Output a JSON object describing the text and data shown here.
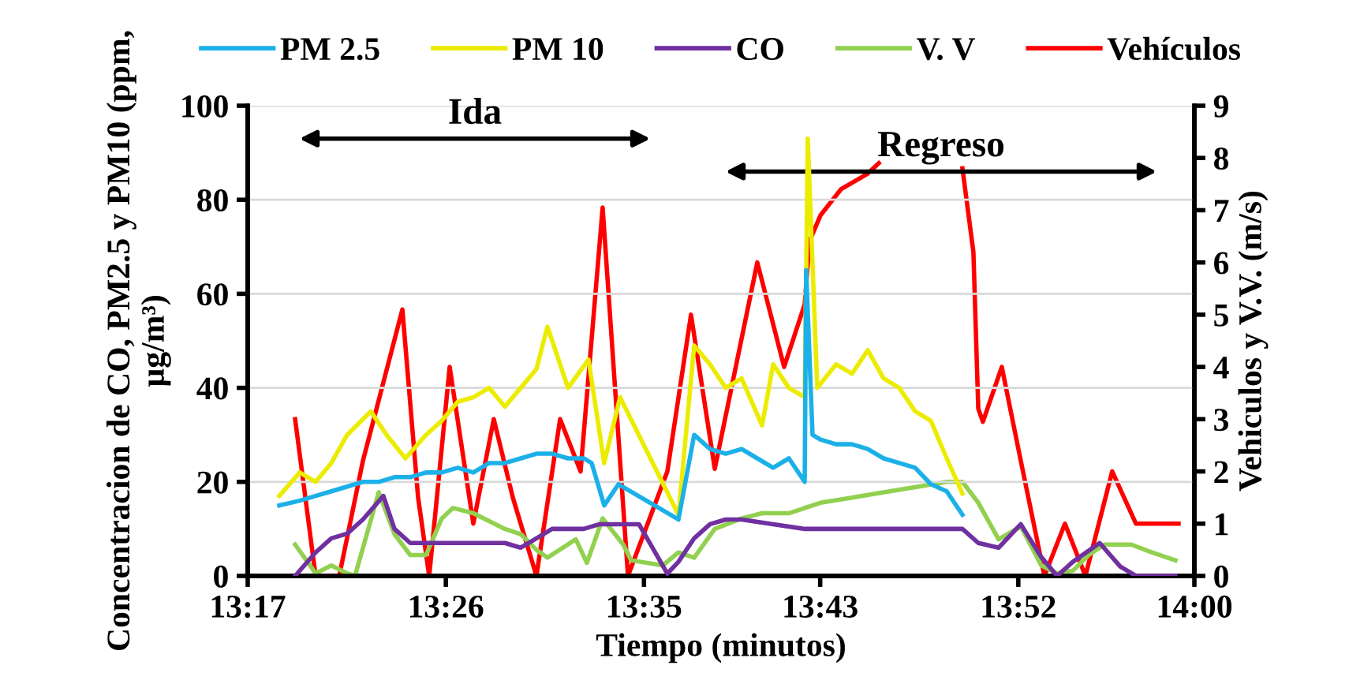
{
  "chart_data": {
    "type": "line",
    "xlabel": "Tiempo (minutos)",
    "ylabel": "Concentracion de CO, PM2.5 y PM10 (ppm, µg/m³)",
    "y2label": "Vehiculos y V.V. (m/s)",
    "annotations": [
      "Ida",
      "Regreso"
    ],
    "xlim": [
      13.2833,
      14.0
    ],
    "xticks": [
      {
        "value": 13.2833,
        "label": "13:17"
      },
      {
        "value": 13.4333,
        "label": "13:26"
      },
      {
        "value": 13.5833,
        "label": "13:35"
      },
      {
        "value": 13.7167,
        "label": "13:43"
      },
      {
        "value": 13.8667,
        "label": "13:52"
      },
      {
        "value": 14.0,
        "label": "14:00"
      }
    ],
    "ylim": [
      0,
      100
    ],
    "yticks": [
      0,
      20,
      40,
      60,
      80,
      100
    ],
    "y2lim": [
      0,
      9
    ],
    "y2ticks": [
      0,
      1,
      2,
      3,
      4,
      5,
      6,
      7,
      8,
      9
    ],
    "grid": "y",
    "legend": "top",
    "marker": "none",
    "line_style": "solid",
    "series": [
      {
        "name": "PM 2.5",
        "color": "#1cb0e8",
        "x": [
          13.3072,
          13.3227,
          13.3347,
          13.3466,
          13.3586,
          13.3705,
          13.3825,
          13.3944,
          13.4063,
          13.4183,
          13.4302,
          13.4422,
          13.4541,
          13.4661,
          13.478,
          13.49,
          13.5019,
          13.5138,
          13.5258,
          13.5377,
          13.5437,
          13.5532,
          13.564,
          13.6094,
          13.6213,
          13.6333,
          13.6452,
          13.6572,
          13.6691,
          13.6811,
          13.693,
          13.705,
          13.7061,
          13.7109,
          13.7169,
          13.7288,
          13.7408,
          13.7527,
          13.7647,
          13.7766,
          13.7886,
          13.8005,
          13.8125,
          13.8244
        ],
        "values": [
          15,
          16,
          17,
          18,
          19,
          20,
          20,
          21,
          21,
          22,
          22,
          23,
          22,
          24,
          24,
          25,
          26,
          26,
          25,
          25,
          24,
          15,
          19.5,
          12,
          30,
          27,
          26,
          27,
          25,
          23,
          25,
          20,
          65,
          30,
          29,
          28,
          28,
          27,
          25,
          24,
          23,
          19.5,
          18,
          13
        ]
      },
      {
        "name": "PM 10",
        "color": "#ecec00",
        "x": [
          13.3072,
          13.3227,
          13.3347,
          13.3466,
          13.3586,
          13.3765,
          13.3884,
          13.4027,
          13.4183,
          13.4302,
          13.4422,
          13.4541,
          13.4661,
          13.478,
          13.49,
          13.5019,
          13.5102,
          13.5258,
          13.5413,
          13.5532,
          13.5652,
          13.6094,
          13.6213,
          13.6333,
          13.6452,
          13.6572,
          13.6727,
          13.6811,
          13.693,
          13.705,
          13.7073,
          13.7145,
          13.7288,
          13.7408,
          13.7527,
          13.7647,
          13.7766,
          13.7886,
          13.8005,
          13.8125,
          13.8244
        ],
        "values": [
          17,
          22,
          20,
          24,
          30,
          35,
          30,
          25,
          30,
          33,
          37,
          38,
          40,
          36,
          40,
          44,
          53,
          40,
          46,
          24,
          38,
          13,
          49,
          45,
          40,
          42,
          32,
          45,
          40,
          38,
          93,
          40,
          45,
          43,
          48,
          42,
          40,
          35,
          33,
          25,
          17.5
        ]
      },
      {
        "name": "CO",
        "color": "#7030a0",
        "x": [
          13.3192,
          13.3347,
          13.3466,
          13.3586,
          13.3705,
          13.386,
          13.3944,
          13.4063,
          13.4302,
          13.4541,
          13.478,
          13.49,
          13.5019,
          13.5138,
          13.5377,
          13.5497,
          13.5795,
          13.601,
          13.6094,
          13.6213,
          13.6333,
          13.6452,
          13.6572,
          13.6811,
          13.705,
          13.7408,
          13.8244,
          13.8364,
          13.8518,
          13.8686,
          13.8841,
          13.8961,
          13.908,
          13.9283,
          13.9439,
          13.9558,
          13.9856
        ],
        "values": [
          0,
          5,
          8,
          9,
          12,
          17,
          10,
          7,
          7,
          7,
          7,
          6,
          8,
          10,
          10,
          11,
          11,
          0.5,
          3,
          8,
          11,
          12,
          12,
          11,
          10,
          10,
          10,
          7,
          6,
          11,
          4,
          0,
          3,
          7,
          2,
          0,
          0
        ]
      },
      {
        "name": "V. V",
        "color": "#92d050",
        "axis": "y2",
        "x": [
          13.3192,
          13.3347,
          13.3466,
          13.3586,
          13.3645,
          13.3825,
          13.3944,
          13.4063,
          13.4183,
          13.4302,
          13.4386,
          13.4541,
          13.478,
          13.49,
          13.5019,
          13.5102,
          13.5317,
          13.5401,
          13.552,
          13.5676,
          13.5736,
          13.5975,
          13.6094,
          13.6213,
          13.6369,
          13.6572,
          13.6727,
          13.693,
          13.7169,
          13.7408,
          13.7647,
          13.7886,
          13.8125,
          13.8244,
          13.8364,
          13.8518,
          13.8686,
          13.8841,
          13.8961,
          13.908,
          13.92,
          13.9319,
          13.9522,
          13.9678,
          13.9856
        ],
        "values": [
          0.6,
          0.05,
          0.2,
          0.05,
          0,
          1.6,
          0.8,
          0.4,
          0.4,
          1.1,
          1.3,
          1.2,
          0.9,
          0.8,
          0.5,
          0.35,
          0.7,
          0.25,
          1.1,
          0.6,
          0.3,
          0.2,
          0.45,
          0.35,
          0.9,
          1.1,
          1.2,
          1.2,
          1.4,
          1.5,
          1.6,
          1.7,
          1.8,
          1.8,
          1.4,
          0.7,
          0.95,
          0.2,
          0.05,
          0.1,
          0.4,
          0.6,
          0.6,
          0.45,
          0.3
        ]
      },
      {
        "name": "Vehículos",
        "color": "#ff0000",
        "axis": "y2",
        "x": [
          13.3192,
          13.3347,
          13.3526,
          13.3705,
          13.4004,
          13.4123,
          13.4207,
          13.4362,
          13.4541,
          13.4696,
          13.484,
          13.5019,
          13.5198,
          13.5353,
          13.552,
          13.5712,
          13.601,
          13.6189,
          13.6369,
          13.6691,
          13.6894,
          13.705,
          13.7085,
          13.7169,
          13.7324,
          13.7527,
          13.7611,
          13.7921,
          13.8244,
          13.8327,
          13.8364,
          13.8399,
          13.8542,
          13.8686,
          13.8865,
          13.902,
          13.9175,
          13.9378,
          13.9558,
          13.988
        ],
        "values": [
          3.0,
          0,
          0,
          2.2,
          5.1,
          1.5,
          0,
          4.0,
          1.0,
          3.0,
          1.5,
          0,
          3.0,
          2.0,
          7.05,
          0,
          2.0,
          5.0,
          2.05,
          6.0,
          4.0,
          5.2,
          6.4,
          6.9,
          7.4,
          7.7,
          7.9,
          null,
          7.8,
          6.2,
          3.2,
          2.95,
          4.0,
          2.2,
          0,
          1.0,
          0,
          2.0,
          1.0,
          1.0
        ]
      }
    ]
  }
}
